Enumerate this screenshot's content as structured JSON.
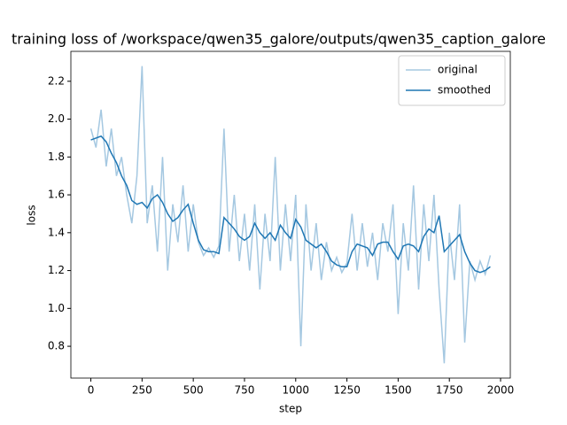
{
  "chart_data": {
    "type": "line",
    "title": "training loss of /workspace/qwen35_galore/outputs/qwen35_caption_galore",
    "xlabel": "step",
    "ylabel": "loss",
    "x": [
      0,
      25,
      50,
      75,
      100,
      125,
      150,
      175,
      200,
      225,
      250,
      275,
      300,
      325,
      350,
      375,
      400,
      425,
      450,
      475,
      500,
      525,
      550,
      575,
      600,
      625,
      650,
      675,
      700,
      725,
      750,
      775,
      800,
      825,
      850,
      875,
      900,
      925,
      950,
      975,
      1000,
      1025,
      1050,
      1075,
      1100,
      1125,
      1150,
      1175,
      1200,
      1225,
      1250,
      1275,
      1300,
      1325,
      1350,
      1375,
      1400,
      1425,
      1450,
      1475,
      1500,
      1525,
      1550,
      1575,
      1600,
      1625,
      1650,
      1675,
      1700,
      1725,
      1750,
      1775,
      1800,
      1825,
      1850,
      1875,
      1900,
      1925,
      1950
    ],
    "series": [
      {
        "name": "original",
        "color": "#a5c8e1",
        "values": [
          1.95,
          1.85,
          2.05,
          1.75,
          1.95,
          1.7,
          1.8,
          1.6,
          1.45,
          1.7,
          2.28,
          1.45,
          1.65,
          1.3,
          1.8,
          1.2,
          1.55,
          1.35,
          1.65,
          1.3,
          1.55,
          1.35,
          1.28,
          1.32,
          1.27,
          1.33,
          1.95,
          1.3,
          1.6,
          1.25,
          1.5,
          1.2,
          1.55,
          1.1,
          1.5,
          1.25,
          1.8,
          1.2,
          1.55,
          1.25,
          1.6,
          0.8,
          1.55,
          1.2,
          1.45,
          1.15,
          1.35,
          1.2,
          1.27,
          1.19,
          1.24,
          1.5,
          1.2,
          1.45,
          1.22,
          1.4,
          1.15,
          1.45,
          1.3,
          1.55,
          0.97,
          1.45,
          1.2,
          1.65,
          1.1,
          1.55,
          1.25,
          1.6,
          1.1,
          0.71,
          1.4,
          1.15,
          1.55,
          0.82,
          1.25,
          1.15,
          1.25,
          1.18,
          1.28
        ]
      },
      {
        "name": "smoothed",
        "color": "#1f77b4",
        "values": [
          1.89,
          1.9,
          1.91,
          1.88,
          1.82,
          1.77,
          1.7,
          1.65,
          1.57,
          1.55,
          1.56,
          1.53,
          1.58,
          1.6,
          1.56,
          1.5,
          1.46,
          1.48,
          1.52,
          1.55,
          1.45,
          1.36,
          1.31,
          1.3,
          1.3,
          1.29,
          1.48,
          1.45,
          1.42,
          1.38,
          1.36,
          1.38,
          1.45,
          1.4,
          1.37,
          1.4,
          1.36,
          1.44,
          1.4,
          1.37,
          1.47,
          1.43,
          1.36,
          1.34,
          1.32,
          1.34,
          1.3,
          1.25,
          1.23,
          1.22,
          1.22,
          1.3,
          1.34,
          1.33,
          1.32,
          1.28,
          1.34,
          1.35,
          1.35,
          1.3,
          1.26,
          1.33,
          1.34,
          1.33,
          1.3,
          1.38,
          1.42,
          1.4,
          1.49,
          1.3,
          1.33,
          1.36,
          1.39,
          1.3,
          1.24,
          1.2,
          1.19,
          1.2,
          1.22
        ]
      }
    ],
    "xlim": [
      -97.5,
      2047.5
    ],
    "xticks": [
      0,
      250,
      500,
      750,
      1000,
      1250,
      1500,
      1750,
      2000
    ],
    "ylim": [
      0.632,
      2.358
    ],
    "yticks": [
      0.8,
      {
        "value": 1.0,
        "label": "1.0"
      },
      1.2,
      1.4,
      1.6,
      1.8,
      {
        "value": 2.0,
        "label": "2.0"
      },
      2.2
    ],
    "legend": "upper right"
  }
}
